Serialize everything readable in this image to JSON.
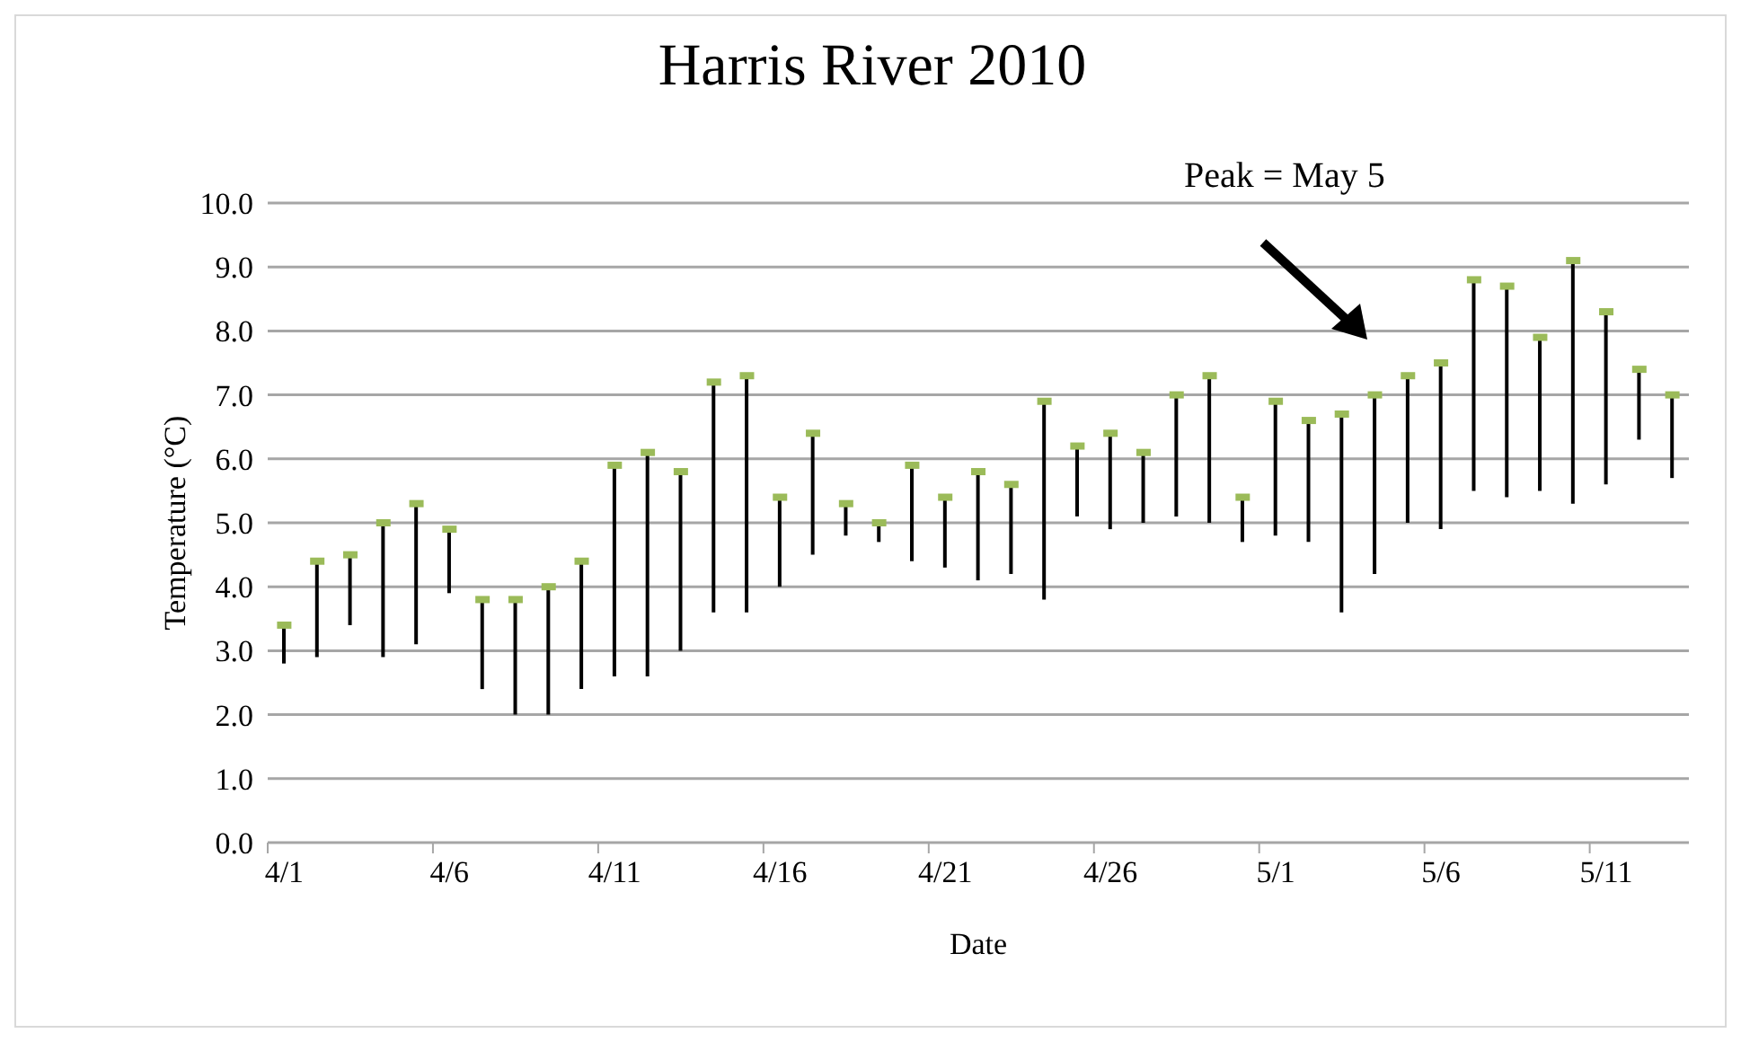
{
  "chart_data": {
    "type": "bar",
    "title": "Harris River 2010",
    "xlabel": "Date",
    "ylabel": "Temperature (°C)",
    "categories": [
      "4/1",
      null,
      null,
      null,
      null,
      "4/6",
      null,
      null,
      null,
      null,
      "4/11",
      null,
      null,
      null,
      null,
      "4/16",
      null,
      null,
      null,
      null,
      "4/21",
      null,
      null,
      null,
      null,
      "4/26",
      null,
      null,
      null,
      null,
      "5/1",
      null,
      null,
      null,
      null,
      "5/6",
      null,
      null,
      null,
      null,
      "5/11",
      null,
      null
    ],
    "series": [
      {
        "color": "#000000",
        "base": [
          2.8,
          2.9,
          3.4,
          2.9,
          3.1,
          3.9,
          2.4,
          2.0,
          2.0,
          2.4,
          2.6,
          2.6,
          3.0,
          3.6,
          3.6,
          4.0,
          4.5,
          4.8,
          4.7,
          4.4,
          4.3,
          4.1,
          4.2,
          3.8,
          5.1,
          4.9,
          5.0,
          5.1,
          5.0,
          4.7,
          4.8,
          4.7,
          3.6,
          4.2,
          5.0,
          4.9,
          5.5,
          5.4,
          5.5,
          5.3,
          5.6,
          6.3,
          5.7
        ],
        "values": [
          0.6,
          1.5,
          1.1,
          2.1,
          2.2,
          1.0,
          1.4,
          1.8,
          2.0,
          2.0,
          3.3,
          3.5,
          2.8,
          3.6,
          3.7,
          1.4,
          1.9,
          0.5,
          0.3,
          1.5,
          1.1,
          1.7,
          1.4,
          3.1,
          1.1,
          1.5,
          1.1,
          1.9,
          2.3,
          0.7,
          2.1,
          1.9,
          3.1,
          2.8,
          2.3,
          2.6,
          3.3,
          3.3,
          2.4,
          3.8,
          2.7,
          1.1,
          1.3
        ]
      },
      {
        "type": "scatter",
        "color": "#9bbb59",
        "marker": "square",
        "values": [
          3.4,
          4.4,
          4.5,
          5.0,
          5.3,
          4.9,
          3.8,
          3.8,
          4.0,
          4.4,
          5.9,
          6.1,
          5.8,
          7.2,
          7.3,
          5.4,
          6.4,
          5.3,
          5.0,
          5.9,
          5.4,
          5.8,
          5.6,
          6.9,
          6.2,
          6.4,
          6.1,
          7.0,
          7.3,
          5.4,
          6.9,
          6.6,
          6.7,
          7.0,
          7.3,
          7.5,
          8.8,
          8.7,
          7.9,
          9.1,
          8.3,
          7.4,
          7.0
        ]
      }
    ],
    "ylim": [
      0,
      10
    ],
    "yticks": [
      {
        "value": 0,
        "label": "0.0"
      },
      {
        "value": 1,
        "label": "1.0"
      },
      {
        "value": 2,
        "label": "2.0"
      },
      {
        "value": 3,
        "label": "3.0"
      },
      {
        "value": 4,
        "label": "4.0"
      },
      {
        "value": 5,
        "label": "5.0"
      },
      {
        "value": 6,
        "label": "6.0"
      },
      {
        "value": 7,
        "label": "7.0"
      },
      {
        "value": 8,
        "label": "8.0"
      },
      {
        "value": 9,
        "label": "9.0"
      },
      {
        "value": 10,
        "label": "10.0"
      }
    ],
    "grid": "y",
    "legend": false,
    "annotations": [
      "Peak = May 5"
    ]
  }
}
